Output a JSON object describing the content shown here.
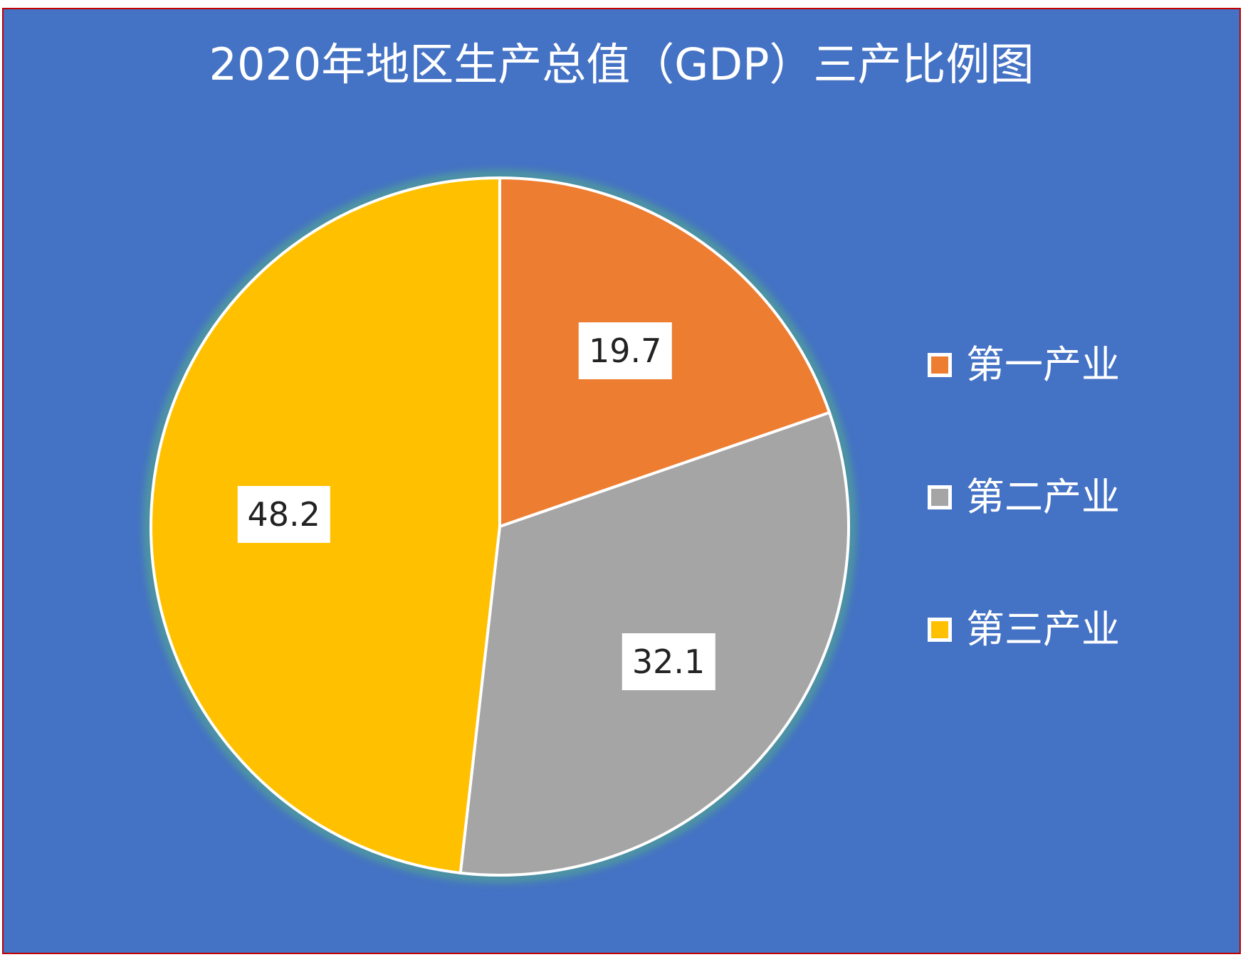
{
  "chart_data": {
    "type": "pie",
    "title": "2020年地区生产总值（GDP）三产比例图",
    "categories": [
      "第一产业",
      "第二产业",
      "第三产业"
    ],
    "values": [
      19.7,
      32.1,
      48.2
    ],
    "colors": [
      "#ed7d31",
      "#a5a5a5",
      "#ffc000"
    ],
    "background_color": "#4472c4",
    "border_color": "#c00000",
    "legend_position": "right",
    "start_angle": "12 o'clock, clockwise",
    "data_labels": true
  }
}
